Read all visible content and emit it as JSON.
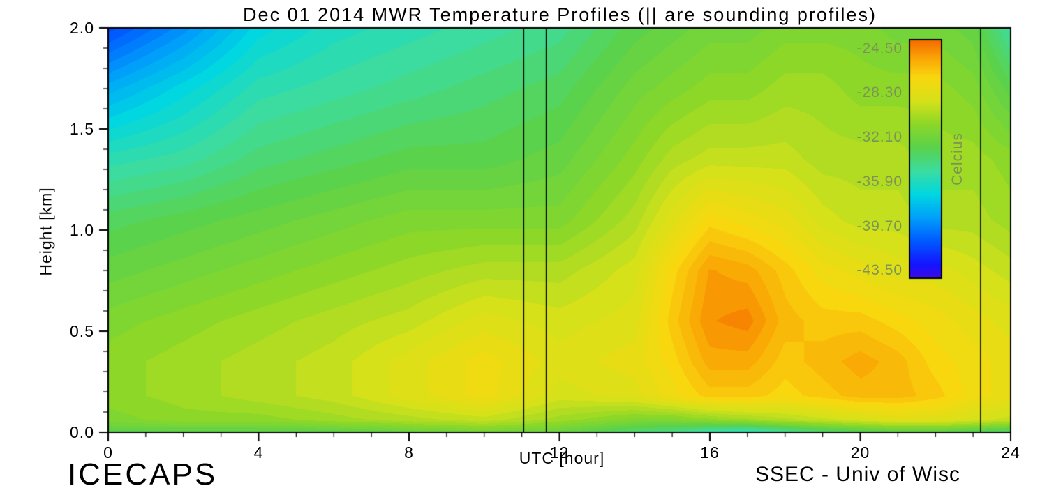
{
  "figure": {
    "footer_left": "ICECAPS",
    "footer_right": "SSEC - Univ of Wisc",
    "background": "#ffffff",
    "frame_color": "#000000"
  },
  "chart_data": {
    "type": "heatmap",
    "title": "Dec 01 2014 MWR Temperature Profiles (|| are sounding profiles)",
    "xlabel": "UTC [hour]",
    "ylabel": "Height [km]",
    "xlim": [
      0,
      24
    ],
    "ylim": [
      0.0,
      2.0
    ],
    "x_major_ticks": [
      0,
      4,
      8,
      12,
      16,
      20,
      24
    ],
    "x_tick_labels": [
      "0",
      "4",
      "8",
      "12",
      "16",
      "20",
      "24"
    ],
    "x_minor_step": 1,
    "y_major_ticks": [
      0.0,
      0.5,
      1.0,
      1.5,
      2.0
    ],
    "y_tick_labels": [
      "0.0",
      "0.5",
      "1.0",
      "1.5",
      "2.0"
    ],
    "y_minor_step": 0.1,
    "sounding_lines_utc": [
      11.05,
      11.65,
      23.2
    ],
    "contour_step_c": 0.5,
    "grid_hours": [
      0,
      2,
      4,
      6,
      8,
      10,
      12,
      14,
      15,
      16,
      17,
      18,
      19,
      20,
      21,
      22,
      23,
      24
    ],
    "grid_heights": [
      0.0,
      0.06,
      0.18,
      0.35,
      0.55,
      0.8,
      1.05,
      1.35,
      1.7,
      2.0
    ],
    "temperature_c": [
      [
        -33,
        -33,
        -33,
        -33,
        -32.5,
        -32,
        -32.5,
        -34,
        -34.5,
        -35.5,
        -36,
        -35,
        -34,
        -33.5,
        -33,
        -33,
        -33.5,
        -34
      ],
      [
        -31.5,
        -31,
        -31,
        -30.5,
        -30,
        -29.5,
        -30.5,
        -31.5,
        -31.5,
        -31,
        -30.5,
        -30,
        -29.5,
        -29,
        -28.5,
        -28.5,
        -29,
        -29.5
      ],
      [
        -31,
        -30.5,
        -30,
        -29.5,
        -28.5,
        -27.5,
        -29,
        -28.5,
        -27.5,
        -26.5,
        -26.5,
        -27,
        -26.5,
        -26,
        -26,
        -26.5,
        -27.5,
        -28
      ],
      [
        -31,
        -30.5,
        -30,
        -29.5,
        -28.5,
        -27.5,
        -28.5,
        -28,
        -27,
        -25.5,
        -25.5,
        -26.5,
        -26,
        -25.5,
        -26,
        -27,
        -27.5,
        -28
      ],
      [
        -31.5,
        -31,
        -30.5,
        -30,
        -29.5,
        -28.5,
        -29,
        -28.5,
        -26.5,
        -24.8,
        -24.5,
        -26,
        -26.5,
        -26.5,
        -27,
        -27.5,
        -28,
        -28.5
      ],
      [
        -32.5,
        -32,
        -31.5,
        -31,
        -30.5,
        -30,
        -30,
        -29,
        -27,
        -25.2,
        -25.5,
        -26.5,
        -27.5,
        -28,
        -28.5,
        -28.5,
        -29,
        -29.5
      ],
      [
        -33.5,
        -33,
        -32.5,
        -32,
        -31.5,
        -31.5,
        -31.5,
        -30,
        -28.5,
        -27,
        -27.5,
        -28,
        -29,
        -29.5,
        -29.5,
        -30,
        -30,
        -30.5
      ],
      [
        -35.5,
        -35,
        -34,
        -33.5,
        -33,
        -33,
        -32.5,
        -31,
        -30,
        -29.5,
        -29.5,
        -29.5,
        -30,
        -30,
        -30,
        -30.5,
        -30.5,
        -31
      ],
      [
        -38.5,
        -37,
        -35.5,
        -35,
        -34.5,
        -34,
        -33.5,
        -32,
        -31.5,
        -31,
        -31,
        -30.5,
        -30.5,
        -31,
        -31,
        -31,
        -31.5,
        -33
      ],
      [
        -41.5,
        -39.5,
        -37,
        -36,
        -35.5,
        -35,
        -34.5,
        -33,
        -32.5,
        -32,
        -32,
        -31.5,
        -31.5,
        -31.5,
        -32,
        -32,
        -32.5,
        -35
      ]
    ],
    "colorbar": {
      "label": "Celcius",
      "tick_values": [
        -24.5,
        -28.3,
        -32.1,
        -35.9,
        -39.7,
        -43.5
      ],
      "tick_labels": [
        "-24.50",
        "-28.30",
        "-32.10",
        "-35.90",
        "-39.70",
        "-43.50"
      ],
      "top_value": -23.8,
      "bottom_value": -44.2,
      "text_color": "#7d9455"
    },
    "colormap_stops": [
      [
        -45,
        90,
        0,
        215
      ],
      [
        -43,
        20,
        20,
        255
      ],
      [
        -41,
        0,
        90,
        255
      ],
      [
        -39,
        0,
        160,
        250
      ],
      [
        -37,
        0,
        215,
        225
      ],
      [
        -35,
        60,
        220,
        160
      ],
      [
        -33,
        90,
        210,
        75
      ],
      [
        -31,
        140,
        215,
        40
      ],
      [
        -29,
        215,
        225,
        25
      ],
      [
        -27,
        248,
        215,
        15
      ],
      [
        -25.5,
        250,
        170,
        5
      ],
      [
        -24,
        245,
        115,
        0
      ],
      [
        -22.5,
        222,
        45,
        0
      ]
    ]
  }
}
